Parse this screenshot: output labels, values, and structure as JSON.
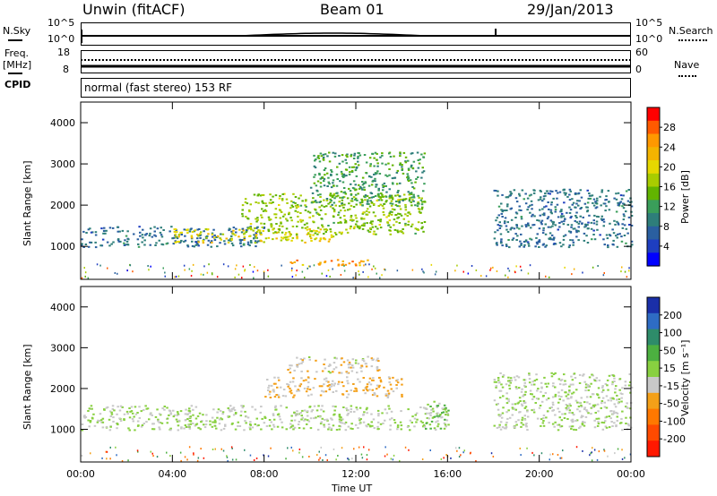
{
  "header": {
    "title": "Unwin (fitACF)",
    "beam": "Beam 01",
    "date": "29/Jan/2013"
  },
  "noise_panel": {
    "left_label": "N.Sky",
    "right_label": "N.Search",
    "left_ticks": [
      "10^5",
      "10^0"
    ],
    "right_ticks": [
      "10^5",
      "10^0"
    ]
  },
  "freq_panel": {
    "left_label_top": "Freq.",
    "left_label_bottom": "[MHz]",
    "right_label": "Nave",
    "left_ticks": [
      "18",
      "8"
    ],
    "right_ticks": [
      "60",
      "0"
    ]
  },
  "cpid": {
    "label": "CPID",
    "mode": "normal (fast stereo) 153 RF"
  },
  "power_plot": {
    "ylabel": "Slant Range [km]",
    "yticks": [
      "4000",
      "3000",
      "2000",
      "1000"
    ],
    "colorbar_label": "Power [dB]",
    "colorbar_ticks": [
      "28",
      "24",
      "20",
      "16",
      "12",
      "8",
      "4"
    ],
    "colorbar_colors": [
      "#ff0000",
      "#ff5a00",
      "#ff9800",
      "#f4b400",
      "#e6d800",
      "#a8cc00",
      "#62b400",
      "#3a9e5a",
      "#2e7e7a",
      "#2a5fa0",
      "#1e3ec0",
      "#0000ff"
    ]
  },
  "velocity_plot": {
    "ylabel": "Slant Range [km]",
    "yticks": [
      "4000",
      "3000",
      "2000",
      "1000"
    ],
    "colorbar_label": "Velocity [m s⁻¹]",
    "colorbar_ticks": [
      "200",
      "100",
      "50",
      "15",
      "-15",
      "-50",
      "-100",
      "-200"
    ],
    "colorbar_colors": [
      "#1a2fa8",
      "#2e6cc4",
      "#2e8c6a",
      "#4cb040",
      "#88d040",
      "#c8c8c8",
      "#f4a018",
      "#ff7800",
      "#ff4a00",
      "#ff1800"
    ]
  },
  "xaxis": {
    "label": "Time UT",
    "ticks": [
      "00:00",
      "04:00",
      "08:00",
      "12:00",
      "16:00",
      "20:00",
      "00:00"
    ]
  },
  "chart_data": {
    "type": "heatmap",
    "title": "Unwin (fitACF)",
    "subtitle": "Beam 01",
    "date": "29/Jan/2013",
    "xlabel": "Time UT",
    "x_range_hours": [
      0,
      24
    ],
    "ylabel": "Slant Range [km]",
    "y_range_km": [
      200,
      4500
    ],
    "panels": [
      {
        "name": "Power",
        "units": "dB",
        "colorbar_range": [
          0,
          32
        ],
        "echo_regions": [
          {
            "t_start": 0,
            "t_end": 8,
            "r_low": 1000,
            "r_high": 1500,
            "value": 8
          },
          {
            "t_start": 4,
            "t_end": 11,
            "r_low": 1100,
            "r_high": 1450,
            "value": 20
          },
          {
            "t_start": 7,
            "t_end": 15,
            "r_low": 1300,
            "r_high": 2300,
            "value": 16
          },
          {
            "t_start": 9,
            "t_end": 12.5,
            "r_low": 550,
            "r_high": 700,
            "value": 24
          },
          {
            "t_start": 10,
            "t_end": 15,
            "r_low": 2000,
            "r_high": 3300,
            "value": 12
          },
          {
            "t_start": 18,
            "t_end": 24,
            "r_low": 1000,
            "r_high": 2400,
            "value": 8
          }
        ]
      },
      {
        "name": "Velocity",
        "units": "m s^-1",
        "colorbar_range": [
          -250,
          250
        ],
        "echo_regions": [
          {
            "t_start": 0,
            "t_end": 16,
            "r_low": 1000,
            "r_high": 1600,
            "value": 0
          },
          {
            "t_start": 8,
            "t_end": 14,
            "r_low": 1800,
            "r_high": 2300,
            "value": -50
          },
          {
            "t_start": 9,
            "t_end": 13,
            "r_low": 2400,
            "r_high": 2800,
            "value": -30
          },
          {
            "t_start": 15,
            "t_end": 16,
            "r_low": 1000,
            "r_high": 1700,
            "value": 30
          },
          {
            "t_start": 18,
            "t_end": 24,
            "r_low": 1000,
            "r_high": 2400,
            "value": 0
          }
        ]
      }
    ]
  }
}
